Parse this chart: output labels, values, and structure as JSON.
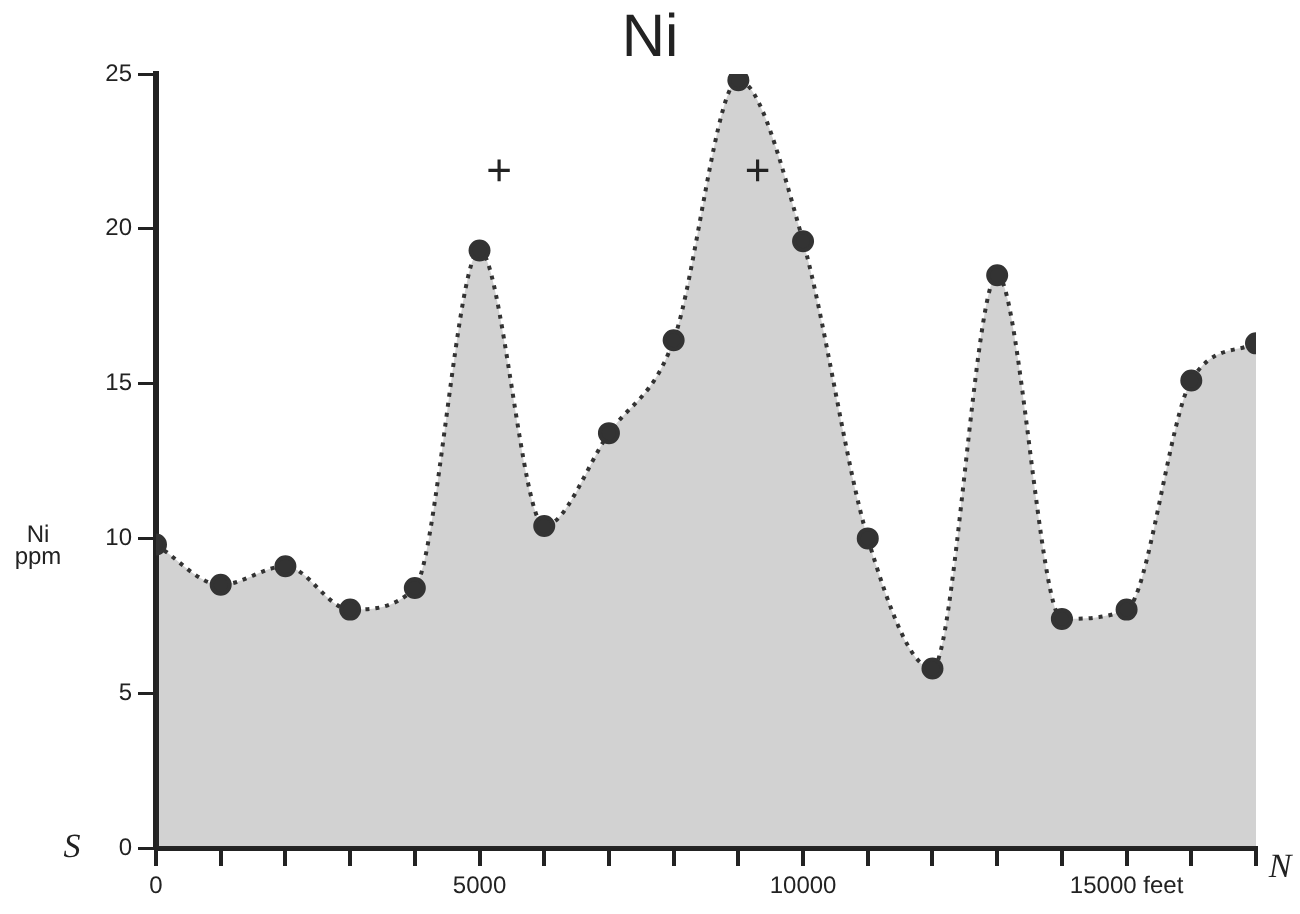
{
  "chart_data": {
    "type": "area",
    "title": "Ni",
    "xlabel": null,
    "ylabel": "Ni ppm",
    "x": [
      0,
      1000,
      2000,
      3000,
      4000,
      5000,
      6000,
      7000,
      8000,
      9000,
      10000,
      11000,
      12000,
      13000,
      14000,
      15000,
      16000,
      17000
    ],
    "series": [
      {
        "color": "#333333",
        "values": [
          9.8,
          8.5,
          9.1,
          7.7,
          8.4,
          19.3,
          10.4,
          13.4,
          16.4,
          24.8,
          19.6,
          10.0,
          5.8,
          18.5,
          7.4,
          7.7,
          15.1,
          16.3
        ]
      }
    ],
    "xlim": [
      0,
      17000
    ],
    "xticks": [
      0,
      {
        "value": 1000,
        "label": null
      },
      {
        "value": 2000,
        "label": null
      },
      {
        "value": 3000,
        "label": null
      },
      {
        "value": 4000,
        "label": null
      },
      5000,
      {
        "value": 6000,
        "label": null
      },
      {
        "value": 7000,
        "label": null
      },
      {
        "value": 8000,
        "label": null
      },
      {
        "value": 9000,
        "label": null
      },
      10000,
      {
        "value": 11000,
        "label": null
      },
      {
        "value": 12000,
        "label": null
      },
      {
        "value": 13000,
        "label": null
      },
      {
        "value": 14000,
        "label": null
      },
      {
        "value": 15000,
        "label": "15000 feet"
      },
      {
        "value": 16000,
        "label": null
      },
      {
        "value": 17000,
        "label": null
      }
    ],
    "ylim": [
      0,
      25
    ],
    "yticks": [
      0,
      5,
      10,
      15,
      20,
      25
    ],
    "grid": false,
    "legend": false,
    "marker": "circle",
    "line_style": "dotted",
    "annotations": [
      "+",
      "+",
      "S",
      "N"
    ]
  }
}
